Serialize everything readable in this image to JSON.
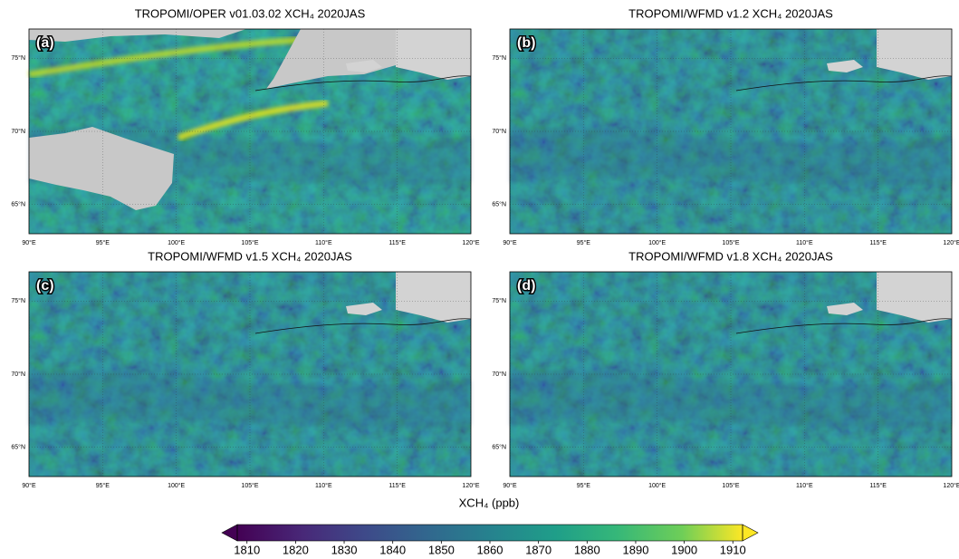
{
  "panels": [
    {
      "label": "(a)",
      "title": "TROPOMI/OPER v01.03.02 XCH₄ 2020JAS"
    },
    {
      "label": "(b)",
      "title": "TROPOMI/WFMD v1.2 XCH₄ 2020JAS"
    },
    {
      "label": "(c)",
      "title": "TROPOMI/WFMD v1.5 XCH₄ 2020JAS"
    },
    {
      "label": "(d)",
      "title": "TROPOMI/WFMD v1.8 XCH₄ 2020JAS"
    }
  ],
  "map": {
    "lon_lim": [
      90,
      120
    ],
    "lat_lim": [
      63,
      77
    ],
    "lon_ticks": [
      {
        "value": 90,
        "label": "90°E"
      },
      {
        "value": 95,
        "label": "95°E"
      },
      {
        "value": 100,
        "label": "100°E"
      },
      {
        "value": 105,
        "label": "105°E"
      },
      {
        "value": 110,
        "label": "110°E"
      },
      {
        "value": 115,
        "label": "115°E"
      },
      {
        "value": 120,
        "label": "120°E"
      }
    ],
    "lat_ticks": [
      {
        "value": 65,
        "label": "65°N"
      },
      {
        "value": 70,
        "label": "70°N"
      },
      {
        "value": 75,
        "label": "75°N"
      }
    ]
  },
  "colorbar": {
    "label": "XCH₄ (ppb)",
    "lim": [
      1808,
      1912
    ],
    "ticks": [
      1810,
      1820,
      1830,
      1840,
      1850,
      1860,
      1870,
      1880,
      1890,
      1900,
      1910
    ]
  }
}
